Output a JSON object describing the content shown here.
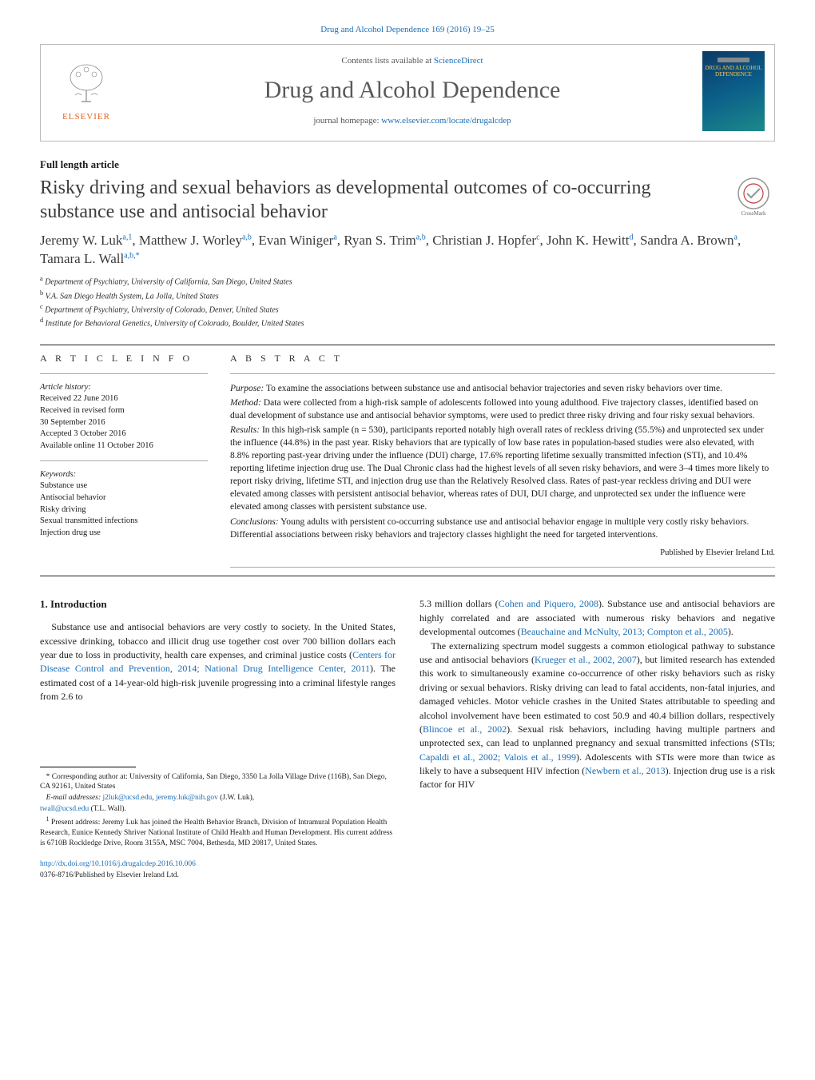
{
  "top_link": "Drug and Alcohol Dependence 169 (2016) 19–25",
  "masthead": {
    "elsevier_label": "ELSEVIER",
    "contents_prefix": "Contents lists available at ",
    "contents_link": "ScienceDirect",
    "journal_name": "Drug and Alcohol Dependence",
    "homepage_prefix": "journal homepage: ",
    "homepage_link": "www.elsevier.com/locate/drugalcdep",
    "cover_text": "DRUG AND ALCOHOL DEPENDENCE"
  },
  "article_type": "Full length article",
  "title": "Risky driving and sexual behaviors as developmental outcomes of co-occurring substance use and antisocial behavior",
  "crossmark_label": "CrossMark",
  "authors_html": "Jeremy W. Luk<sup>a,1</sup>, Matthew J. Worley<sup>a,b</sup>, Evan Winiger<sup>a</sup>, Ryan S. Trim<sup>a,b</sup>, Christian J. Hopfer<sup>c</sup>, John K. Hewitt<sup>d</sup>, Sandra A. Brown<sup>a</sup>, Tamara L. Wall<sup>a,b,*</sup>",
  "affiliations": [
    {
      "sup": "a",
      "text": "Department of Psychiatry, University of California, San Diego, United States"
    },
    {
      "sup": "b",
      "text": "V.A. San Diego Health System, La Jolla, United States"
    },
    {
      "sup": "c",
      "text": "Department of Psychiatry, University of Colorado, Denver, United States"
    },
    {
      "sup": "d",
      "text": "Institute for Behavioral Genetics, University of Colorado, Boulder, United States"
    }
  ],
  "info": {
    "heading": "A R T I C L E  I N F O",
    "history_label": "Article history:",
    "history": [
      "Received 22 June 2016",
      "Received in revised form",
      "30 September 2016",
      "Accepted 3 October 2016",
      "Available online 11 October 2016"
    ],
    "keywords_label": "Keywords:",
    "keywords": [
      "Substance use",
      "Antisocial behavior",
      "Risky driving",
      "Sexual transmitted infections",
      "Injection drug use"
    ]
  },
  "abstract": {
    "heading": "A B S T R A C T",
    "purpose_label": "Purpose:",
    "purpose": "To examine the associations between substance use and antisocial behavior trajectories and seven risky behaviors over time.",
    "method_label": "Method:",
    "method": "Data were collected from a high-risk sample of adolescents followed into young adulthood. Five trajectory classes, identified based on dual development of substance use and antisocial behavior symptoms, were used to predict three risky driving and four risky sexual behaviors.",
    "results_label": "Results:",
    "results": "In this high-risk sample (n = 530), participants reported notably high overall rates of reckless driving (55.5%) and unprotected sex under the influence (44.8%) in the past year. Risky behaviors that are typically of low base rates in population-based studies were also elevated, with 8.8% reporting past-year driving under the influence (DUI) charge, 17.6% reporting lifetime sexually transmitted infection (STI), and 10.4% reporting lifetime injection drug use. The Dual Chronic class had the highest levels of all seven risky behaviors, and were 3–4 times more likely to report risky driving, lifetime STI, and injection drug use than the Relatively Resolved class. Rates of past-year reckless driving and DUI were elevated among classes with persistent antisocial behavior, whereas rates of DUI, DUI charge, and unprotected sex under the influence were elevated among classes with persistent substance use.",
    "conclusions_label": "Conclusions:",
    "conclusions": "Young adults with persistent co-occurring substance use and antisocial behavior engage in multiple very costly risky behaviors. Differential associations between risky behaviors and trajectory classes highlight the need for targeted interventions.",
    "copyright": "Published by Elsevier Ireland Ltd."
  },
  "body": {
    "intro_heading": "1. Introduction",
    "p1_a": "Substance use and antisocial behaviors are very costly to society. In the United States, excessive drinking, tobacco and illicit drug use together cost over 700 billion dollars each year due to loss in productivity, health care expenses, and criminal justice costs (",
    "p1_link1": "Centers for Disease Control and Prevention, 2014; National Drug Intelligence Center, 2011",
    "p1_b": "). The estimated cost of a 14-year-old high-risk juvenile progressing into a criminal lifestyle ranges from 2.6 to",
    "p2_a": "5.3 million dollars (",
    "p2_link1": "Cohen and Piquero, 2008",
    "p2_b": "). Substance use and antisocial behaviors are highly correlated and are associated with numerous risky behaviors and negative developmental outcomes (",
    "p2_link2": "Beauchaine and McNulty, 2013; Compton et al., 2005",
    "p2_c": ").",
    "p3_a": "The externalizing spectrum model suggests a common etiological pathway to substance use and antisocial behaviors (",
    "p3_link1": "Krueger et al., 2002, 2007",
    "p3_b": "), but limited research has extended this work to simultaneously examine co-occurrence of other risky behaviors such as risky driving or sexual behaviors. Risky driving can lead to fatal accidents, non-fatal injuries, and damaged vehicles. Motor vehicle crashes in the United States attributable to speeding and alcohol involvement have been estimated to cost 50.9 and 40.4 billion dollars, respectively (",
    "p3_link2": "Blincoe et al., 2002",
    "p3_c": "). Sexual risk behaviors, including having multiple partners and unprotected sex, can lead to unplanned pregnancy and sexual transmitted infections (STIs; ",
    "p3_link3": "Capaldi et al., 2002; Valois et al., 1999",
    "p3_d": "). Adolescents with STIs were more than twice as likely to have a subsequent HIV infection (",
    "p3_link4": "Newbern et al., 2013",
    "p3_e": "). Injection drug use is a risk factor for HIV"
  },
  "footnotes": {
    "corr_star": "*",
    "corr": "Corresponding author at: University of California, San Diego, 3350 La Jolla Village Drive (116B), San Diego, CA 92161, United States",
    "email_label": "E-mail addresses:",
    "email1": "j2luk@ucsd.edu",
    "email1_sep": ", ",
    "email2": "jeremy.luk@nih.gov",
    "email_paren1": " (J.W. Luk),",
    "email3": "twall@ucsd.edu",
    "email_paren2": " (T.L. Wall).",
    "note1_sup": "1",
    "note1": "Present address: Jeremy Luk has joined the Health Behavior Branch, Division of Intramural Population Health Research, Eunice Kennedy Shriver National Institute of Child Health and Human Development. His current address is 6710B Rockledge Drive, Room 3155A, MSC 7004, Bethesda, MD 20817, United States."
  },
  "doi": {
    "link": "http://dx.doi.org/10.1016/j.drugalcdep.2016.10.006",
    "issn_line": "0376-8716/Published by Elsevier Ireland Ltd."
  },
  "colors": {
    "link": "#1a6db5",
    "elsevier": "#e6641f",
    "border": "#bbbbbb",
    "text": "#1a1a1a",
    "title_grey": "#3b3b3b"
  }
}
